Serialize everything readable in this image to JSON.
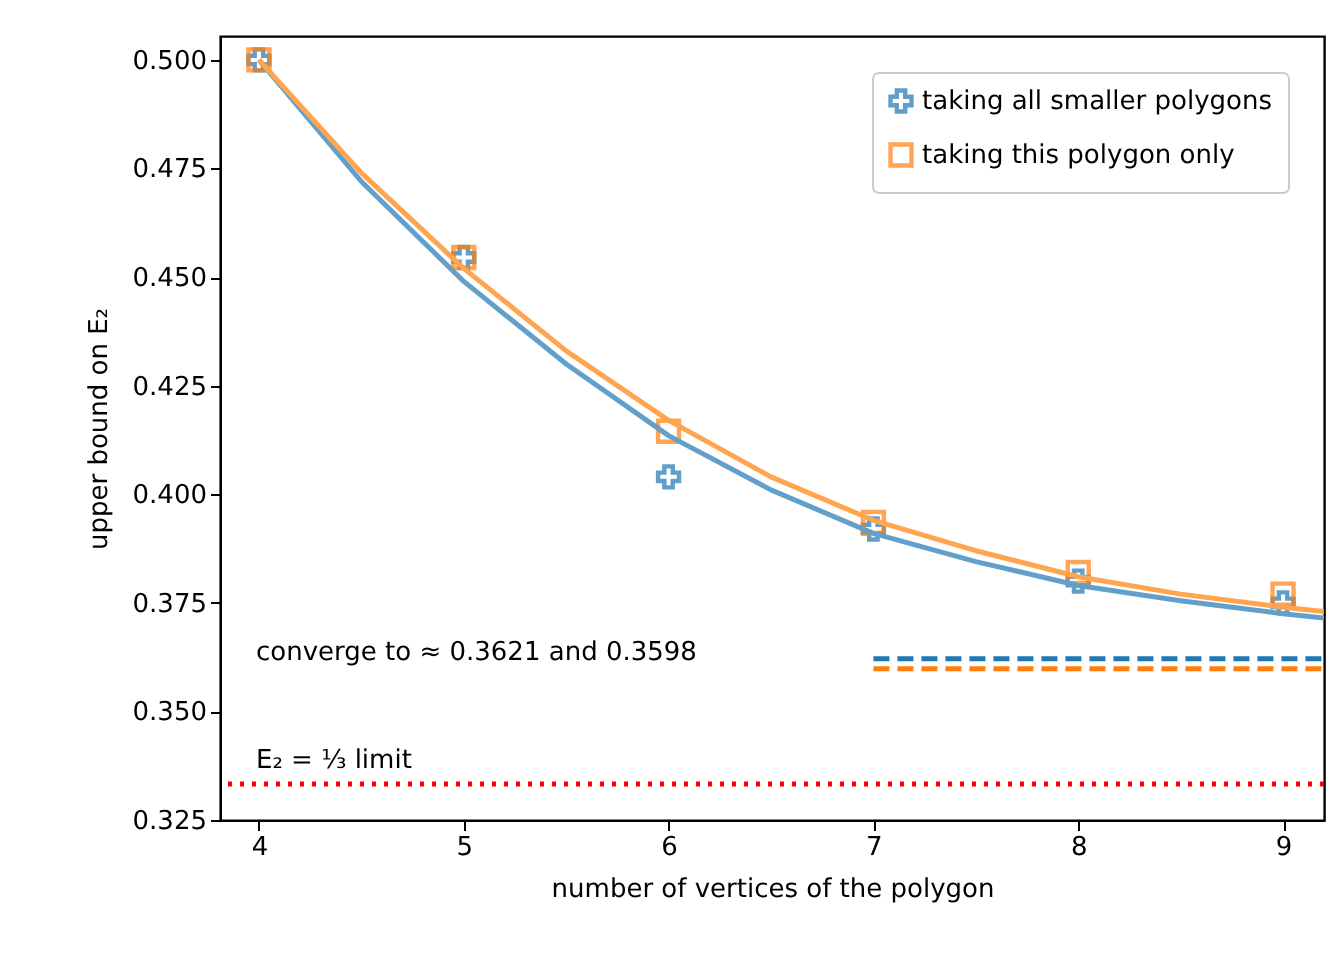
{
  "chart_data": {
    "type": "scatter",
    "xlabel": "number of vertices of the polygon",
    "ylabel": "upper bound on E₂",
    "xlim": [
      3.81,
      9.2
    ],
    "ylim": [
      0.325,
      0.5055
    ],
    "xticks": [
      4,
      5,
      6,
      7,
      8,
      9
    ],
    "yticks": [
      {
        "value": 0.325,
        "label": "0.325"
      },
      {
        "value": 0.35,
        "label": "0.350"
      },
      {
        "value": 0.375,
        "label": "0.375"
      },
      {
        "value": 0.4,
        "label": "0.400"
      },
      {
        "value": 0.425,
        "label": "0.425"
      },
      {
        "value": 0.45,
        "label": "0.450"
      },
      {
        "value": 0.475,
        "label": "0.475"
      },
      {
        "value": 0.5,
        "label": "0.500"
      }
    ],
    "grid": false,
    "legend": "top right",
    "series": [
      {
        "name": "taking all smaller polygons",
        "marker": "cross",
        "color": "#1f77b4",
        "x": [
          4,
          5,
          6,
          7,
          8,
          9
        ],
        "values": [
          0.5,
          0.4545,
          0.404,
          0.392,
          0.38,
          0.375
        ]
      },
      {
        "name": "taking this polygon only",
        "marker": "square",
        "color": "#ff7f0e",
        "x": [
          4,
          5,
          6,
          7,
          8,
          9
        ],
        "values": [
          0.5,
          0.4545,
          0.4145,
          0.3935,
          0.382,
          0.377
        ]
      },
      {
        "type": "line",
        "color": "#62a0cb",
        "line_style": "solid",
        "x": [
          4,
          4.5,
          5,
          5.5,
          6,
          6.5,
          7,
          7.5,
          8,
          8.5,
          9,
          9.2
        ],
        "values": [
          0.5,
          0.472,
          0.449,
          0.43,
          0.4135,
          0.401,
          0.391,
          0.3845,
          0.379,
          0.3755,
          0.3725,
          0.3715
        ]
      },
      {
        "type": "line",
        "color": "#ffa550",
        "line_style": "solid",
        "x": [
          4,
          4.5,
          5,
          5.5,
          6,
          6.5,
          7,
          7.5,
          8,
          8.5,
          9,
          9.2
        ],
        "values": [
          0.5,
          0.474,
          0.452,
          0.433,
          0.417,
          0.404,
          0.394,
          0.387,
          0.381,
          0.377,
          0.374,
          0.373
        ]
      },
      {
        "type": "line",
        "color": "#1f77b4",
        "line_style": "dashed",
        "x": [
          7,
          9.2
        ],
        "values": [
          0.3621,
          0.3621
        ]
      },
      {
        "type": "line",
        "color": "#ff7f0e",
        "line_style": "dashed",
        "x": [
          7,
          9.2
        ],
        "values": [
          0.3598,
          0.3598
        ]
      }
    ],
    "ref_lines": [
      {
        "axis": "y",
        "value": 0.3333,
        "label": "E₂ = ⅓ limit",
        "color": "#ff0000",
        "line_style": "dotted"
      }
    ],
    "annotations": [
      "converge to ≈ 0.3621 and 0.3598"
    ]
  }
}
